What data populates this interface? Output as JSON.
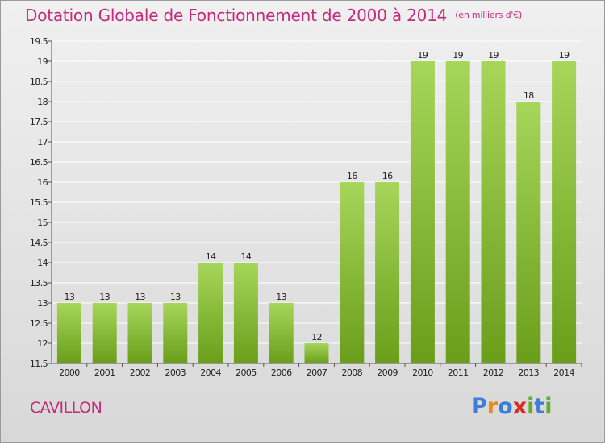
{
  "title": "Dotation Globale de Fonctionnement de 2000 à 2014",
  "subtitle": "(en milliers d'€)",
  "commune": "CAVILLON",
  "logo": {
    "text": "Proxiti",
    "letters": [
      "P",
      "r",
      "o",
      "x",
      "i",
      "t",
      "i"
    ],
    "colors": [
      "#3d7fd8",
      "#e8891c",
      "#3d7fd8",
      "#d92a2a",
      "#5fae2d",
      "#3d7fd8",
      "#5fae2d"
    ]
  },
  "chart_data": {
    "type": "bar",
    "categories": [
      "2000",
      "2001",
      "2002",
      "2003",
      "2004",
      "2005",
      "2006",
      "2007",
      "2008",
      "2009",
      "2010",
      "2011",
      "2012",
      "2013",
      "2014"
    ],
    "values": [
      13,
      13,
      13,
      13,
      14,
      14,
      13,
      12,
      16,
      16,
      19,
      19,
      19,
      18,
      19
    ],
    "value_labels": [
      "13",
      "13",
      "13",
      "13",
      "14",
      "14",
      "13",
      "12",
      "16",
      "16",
      "19",
      "19",
      "19",
      "18",
      "19"
    ],
    "ylim": [
      11.5,
      19.5
    ],
    "yticks": [
      11.5,
      12,
      12.5,
      13,
      13.5,
      14,
      14.5,
      15,
      15.5,
      16,
      16.5,
      17,
      17.5,
      18,
      18.5,
      19,
      19.5
    ],
    "ytick_labels": [
      "11.5",
      "12",
      "12.5",
      "13",
      "13.5",
      "14",
      "14.5",
      "15",
      "15.5",
      "16",
      "16.5",
      "17",
      "17.5",
      "18",
      "18.5",
      "19",
      "19.5"
    ],
    "grid": true,
    "bar_color_light": "#a6d65a",
    "bar_color_dark": "#6a9e1a"
  }
}
